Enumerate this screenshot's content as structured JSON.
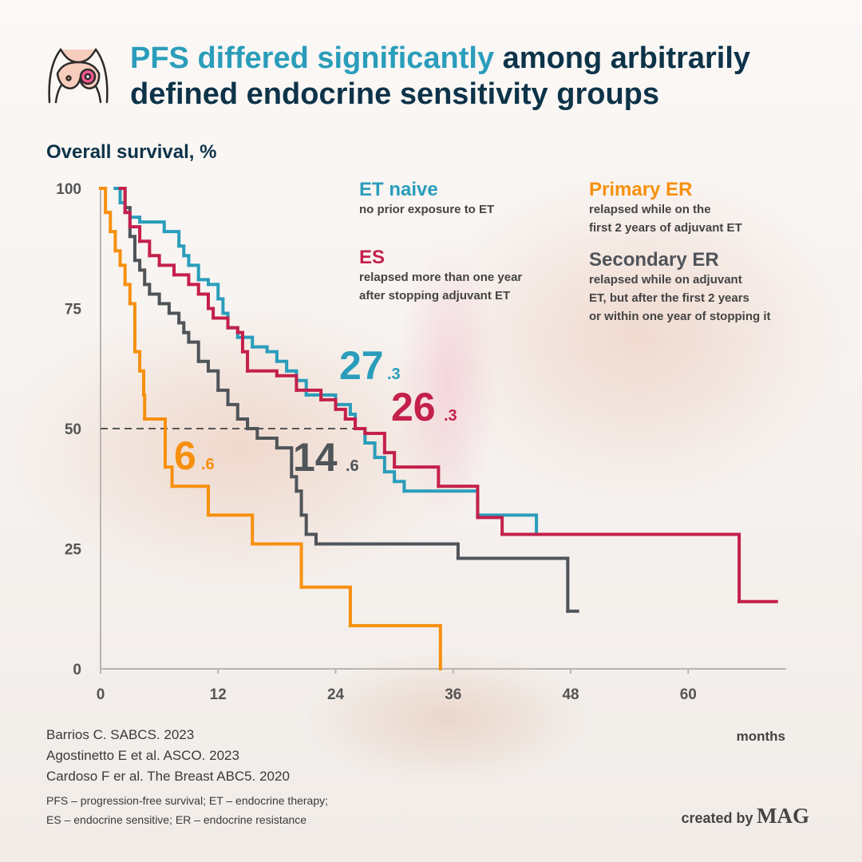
{
  "chart_data": {
    "type": "line",
    "step": "post",
    "title_lines": [
      [
        "PFS differed significantly",
        "among arbitrarily"
      ],
      [
        "defined endocrine sensitivity groups"
      ]
    ],
    "title_highlight_color": "#2a9dbb",
    "y_label": "Overall survival, %",
    "x_label": "months",
    "xlim": [
      0,
      70
    ],
    "ylim": [
      0,
      100
    ],
    "xticks": [
      0,
      12,
      24,
      36,
      48,
      60
    ],
    "yticks": [
      0,
      25,
      50,
      75,
      100
    ],
    "grid": false,
    "reference_line": {
      "y": 50,
      "x_end": 26
    },
    "series": [
      {
        "name": "ET naive",
        "color": "#2a9dbb",
        "description": [
          "no prior exposure to ET"
        ],
        "median_label": [
          "27",
          ".3"
        ],
        "x": [
          1.5,
          2,
          2.5,
          3,
          4,
          6.5,
          8,
          8.5,
          9,
          10,
          11,
          12,
          12.5,
          13,
          14,
          15.5,
          17,
          18,
          19,
          20,
          21,
          24,
          25.5,
          26,
          27,
          28,
          29,
          30,
          31,
          38.5,
          44.5,
          44.6
        ],
        "values": [
          100,
          97,
          95,
          94,
          93,
          91,
          88,
          86,
          84,
          81,
          80,
          77,
          74,
          71,
          69,
          67,
          66,
          64,
          62,
          60,
          57,
          55,
          53,
          50,
          47,
          44,
          41,
          39,
          37,
          32,
          28,
          28
        ]
      },
      {
        "name": "ES",
        "color": "#c4204b",
        "description": [
          "relapsed more than one year",
          "after stopping adjuvant ET"
        ],
        "median_label": [
          "26",
          ".3"
        ],
        "x": [
          2,
          2.5,
          3,
          4,
          5,
          6,
          7.5,
          9,
          10,
          11,
          11.5,
          13,
          14,
          14.5,
          15,
          18,
          20,
          22.5,
          24,
          25,
          26,
          27,
          29,
          30,
          34.5,
          38.5,
          41,
          65.2,
          69
        ],
        "values": [
          100,
          95,
          92,
          89,
          86,
          84,
          82,
          80,
          78,
          75,
          73,
          71,
          70,
          66,
          62,
          61,
          58,
          56,
          54,
          52,
          50,
          49,
          45,
          42,
          38,
          31.5,
          28,
          14,
          14
        ]
      },
      {
        "name": "Primary ER",
        "color": "#f7900f",
        "description": [
          "relapsed while on the",
          "first 2 years of adjuvant ET"
        ],
        "median_label": [
          "6",
          ".6"
        ],
        "x": [
          0,
          0.5,
          1,
          1.5,
          2,
          2.5,
          3,
          3.5,
          4,
          4.4,
          4.5,
          6.6,
          7.3,
          11,
          15.5,
          20.5,
          25.5,
          34.7
        ],
        "values": [
          100,
          95,
          91,
          87,
          84,
          80,
          76,
          66,
          62,
          57,
          52,
          42,
          38,
          32,
          26,
          17,
          9,
          0
        ]
      },
      {
        "name": "Secondary ER",
        "color": "#4f5459",
        "description": [
          "relapsed while on adjuvant",
          "ET, but after the first 2 years",
          "or within one year of stopping it"
        ],
        "median_label": [
          "14",
          ".6"
        ],
        "x": [
          1.5,
          2.5,
          3,
          3.5,
          4,
          4.5,
          5,
          6,
          7,
          8,
          8.5,
          9,
          10,
          11,
          12,
          13,
          14,
          15,
          16,
          18,
          19.5,
          20,
          20.5,
          21,
          22,
          36.5,
          47.7,
          48.7
        ],
        "values": [
          100,
          96,
          90,
          85,
          83,
          80,
          78,
          76,
          74,
          72,
          70,
          68,
          64,
          62,
          58,
          55,
          52,
          50,
          48,
          46,
          40,
          37,
          32,
          28,
          26,
          23,
          12,
          12
        ]
      }
    ],
    "sources": [
      "Barrios C. SABCS. 2023",
      "Agostinetto E et al. ASCO. 2023",
      "Cardoso F er al. The Breast ABC5. 2020"
    ],
    "abbreviations": [
      "PFS – progression-free survival; ET – endocrine therapy;",
      "ES – endocrine sensitive; ER – endocrine resistance"
    ],
    "credit": [
      "created by",
      "MAG"
    ]
  }
}
